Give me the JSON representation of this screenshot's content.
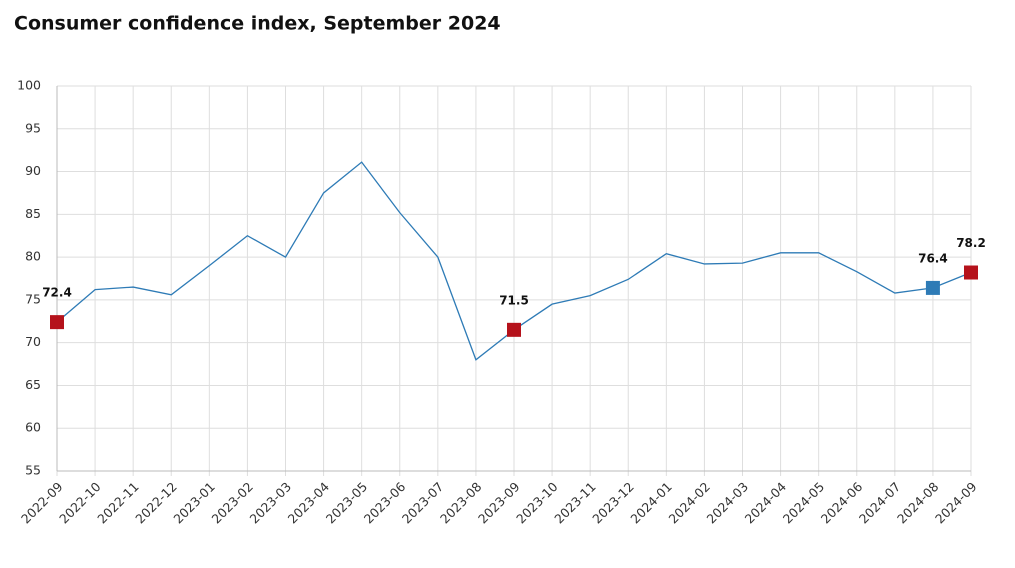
{
  "chart_data": {
    "type": "line",
    "title": "Consumer confidence index, September 2024",
    "categories": [
      "2022-09",
      "2022-10",
      "2022-11",
      "2022-12",
      "2023-01",
      "2023-02",
      "2023-03",
      "2023-04",
      "2023-05",
      "2023-06",
      "2023-07",
      "2023-08",
      "2023-09",
      "2023-10",
      "2023-11",
      "2023-12",
      "2024-01",
      "2024-02",
      "2024-03",
      "2024-04",
      "2024-05",
      "2024-06",
      "2024-07",
      "2024-08",
      "2024-09"
    ],
    "series": [
      {
        "color": "#2e7bb6",
        "values": [
          72.4,
          76.2,
          76.5,
          75.6,
          79.0,
          82.5,
          80.0,
          87.5,
          91.1,
          85.2,
          80.0,
          68.0,
          71.5,
          74.5,
          75.5,
          77.4,
          80.4,
          79.2,
          79.3,
          80.5,
          80.5,
          78.3,
          75.8,
          76.4,
          78.2
        ]
      }
    ],
    "markers": [
      {
        "index": 0,
        "color": "#b5121b"
      },
      {
        "index": 12,
        "color": "#b5121b"
      },
      {
        "index": 23,
        "color": "#2e7bb6"
      },
      {
        "index": 24,
        "color": "#b5121b"
      }
    ],
    "ylim": [
      55,
      100
    ],
    "yticks": [
      55,
      60,
      65,
      70,
      75,
      80,
      85,
      90,
      95,
      100
    ],
    "grid": true
  }
}
